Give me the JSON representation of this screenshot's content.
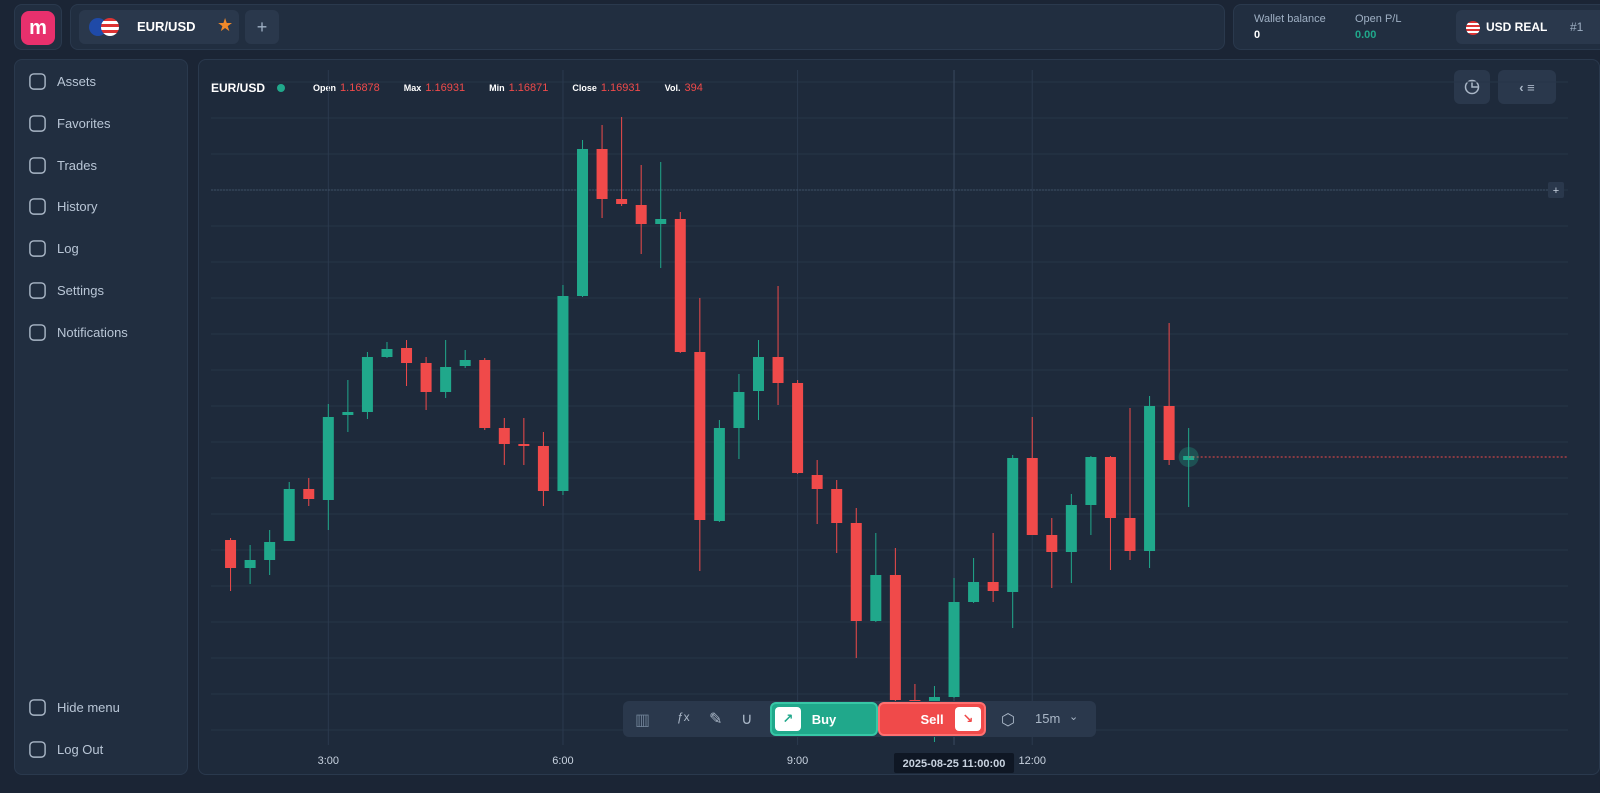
{
  "header": {
    "tab": "EUR/USD",
    "add": "+",
    "wallet_label": "Wallet balance",
    "wallet_value": "0",
    "pl_label": "Open P/L",
    "pl_value": "0.00",
    "account": "USD REAL",
    "account_id": "#1"
  },
  "sidebar": {
    "items": [
      "Assets",
      "Favorites",
      "Trades",
      "History",
      "Log",
      "Settings",
      "Notifications"
    ],
    "bottom": [
      "Hide menu",
      "Log Out"
    ]
  },
  "toolbar": {
    "buy": "Buy",
    "sell": "Sell",
    "interval": "15m"
  },
  "chart_data": {
    "type": "candlestick",
    "symbol": "EUR/USD",
    "stats": [
      {
        "label": "Open",
        "value": 1.16878
      },
      {
        "label": "Max",
        "value": 1.16931
      },
      {
        "label": "Min",
        "value": 1.16871
      },
      {
        "label": "Close",
        "value": 1.16931
      },
      {
        "label": "Vol.",
        "value": 394
      }
    ],
    "up_color": "#20a88b",
    "down_color": "#f04a4a",
    "x": [
      1.75,
      2,
      2.25,
      2.5,
      2.75,
      3,
      3.25,
      3.5,
      3.75,
      4,
      4.25,
      4.5,
      4.75,
      5,
      5.25,
      5.5,
      5.75,
      6,
      6.25,
      6.5,
      6.75,
      7,
      7.25,
      7.5,
      7.75,
      8,
      8.25,
      8.5,
      8.75,
      9,
      9.25,
      9.5,
      9.75,
      10,
      10.25,
      10.5,
      10.75,
      11,
      11.25,
      11.5,
      11.75,
      12,
      12.25,
      12.5,
      12.75,
      13,
      13.25,
      13.5,
      13.75,
      14
    ],
    "open": [
      1.16848,
      1.1682,
      1.16828,
      1.16847,
      1.16899,
      1.16888,
      1.16973,
      1.16976,
      1.17031,
      1.1704,
      1.17025,
      1.16996,
      1.17022,
      1.17028,
      1.1696,
      1.16944,
      1.16942,
      1.16897,
      1.17092,
      1.17239,
      1.17189,
      1.17183,
      1.17164,
      1.17169,
      1.17036,
      1.16867,
      1.1696,
      1.16997,
      1.17031,
      1.17005,
      1.16913,
      1.16899,
      1.16865,
      1.16767,
      1.16813,
      1.16688,
      1.16687,
      1.16691,
      1.16786,
      1.16806,
      1.16796,
      1.1693,
      1.16853,
      1.16836,
      1.16883,
      1.16931,
      1.1687,
      1.16837,
      1.16982,
      1.16928
    ],
    "high": [
      1.1685,
      1.16843,
      1.16858,
      1.16906,
      1.1691,
      1.16984,
      1.17008,
      1.17036,
      1.17046,
      1.17048,
      1.17031,
      1.17048,
      1.17038,
      1.1703,
      1.1697,
      1.1697,
      1.16956,
      1.17103,
      1.17248,
      1.17263,
      1.17271,
      1.17223,
      1.17226,
      1.17176,
      1.1709,
      1.16968,
      1.17014,
      1.17048,
      1.17102,
      1.17008,
      1.16928,
      1.16908,
      1.1688,
      1.16855,
      1.1684,
      1.16704,
      1.16702,
      1.1681,
      1.1683,
      1.16855,
      1.16933,
      1.16971,
      1.1687,
      1.16894,
      1.16932,
      1.16932,
      1.1698,
      1.16992,
      1.17065,
      1.1696
    ],
    "low": [
      1.16797,
      1.16804,
      1.16813,
      1.16847,
      1.16882,
      1.16858,
      1.16956,
      1.16969,
      1.1703,
      1.17002,
      1.16978,
      1.1699,
      1.1702,
      1.16958,
      1.16923,
      1.16923,
      1.16882,
      1.16893,
      1.17091,
      1.1717,
      1.17182,
      1.17134,
      1.1712,
      1.17035,
      1.16817,
      1.16866,
      1.16929,
      1.16968,
      1.16983,
      1.16914,
      1.16864,
      1.16835,
      1.1673,
      1.16766,
      1.16686,
      1.1667,
      1.16646,
      1.1669,
      1.16785,
      1.16786,
      1.1676,
      1.16853,
      1.168,
      1.16805,
      1.16853,
      1.16818,
      1.16828,
      1.1682,
      1.16923,
      1.16881
    ],
    "close": [
      1.1682,
      1.16828,
      1.16846,
      1.16899,
      1.16889,
      1.16971,
      1.16976,
      1.17031,
      1.17039,
      1.17025,
      1.16996,
      1.17021,
      1.17028,
      1.1696,
      1.16944,
      1.16943,
      1.16897,
      1.17092,
      1.17239,
      1.17189,
      1.17184,
      1.17164,
      1.17169,
      1.17036,
      1.16868,
      1.1696,
      1.16996,
      1.17031,
      1.17005,
      1.16915,
      1.16899,
      1.16865,
      1.16767,
      1.16813,
      1.16688,
      1.16686,
      1.16691,
      1.16786,
      1.16806,
      1.16797,
      1.1693,
      1.16853,
      1.16836,
      1.16883,
      1.16931,
      1.1687,
      1.16837,
      1.16982,
      1.16928,
      1.16932
    ],
    "xlim": [
      1.5,
      18.85
    ],
    "ylim": [
      1.16643,
      1.17318
    ],
    "xticks": [
      {
        "value": 3,
        "label": "3:00"
      },
      {
        "value": 6,
        "label": "6:00"
      },
      {
        "value": 9,
        "label": "9:00"
      },
      {
        "value": 12,
        "label": "12:00"
      }
    ],
    "crosshair": {
      "label": "2025-08-25 11:00:00",
      "x": 11,
      "y": 1.17198
    }
  }
}
